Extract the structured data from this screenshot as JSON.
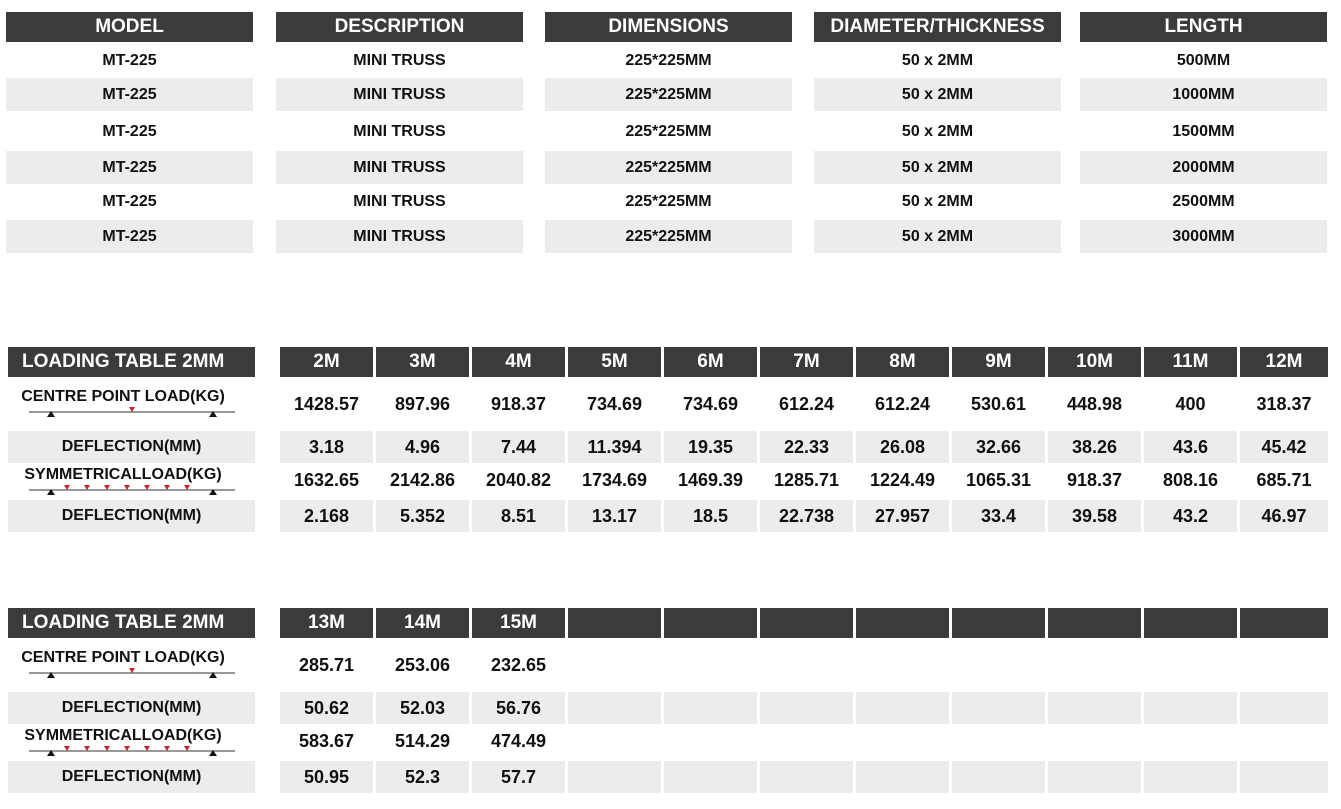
{
  "spec_table": {
    "headers": [
      "MODEL",
      "DESCRIPTION",
      "DIMENSIONS",
      "DIAMETER/THICKNESS",
      "LENGTH"
    ],
    "rows": [
      [
        "MT-225",
        "MINI TRUSS",
        "225*225MM",
        "50 x 2MM",
        "500MM"
      ],
      [
        "MT-225",
        "MINI TRUSS",
        "225*225MM",
        "50 x 2MM",
        "1000MM"
      ],
      [
        "MT-225",
        "MINI TRUSS",
        "225*225MM",
        "50 x 2MM",
        "1500MM"
      ],
      [
        "MT-225",
        "MINI TRUSS",
        "225*225MM",
        "50 x 2MM",
        "2000MM"
      ],
      [
        "MT-225",
        "MINI TRUSS",
        "225*225MM",
        "50 x 2MM",
        "2500MM"
      ],
      [
        "MT-225",
        "MINI TRUSS",
        "225*225MM",
        "50 x 2MM",
        "3000MM"
      ]
    ]
  },
  "loading_tables": [
    {
      "title": "LOADING TABLE 2MM",
      "columns": [
        "2M",
        "3M",
        "4M",
        "5M",
        "6M",
        "7M",
        "8M",
        "9M",
        "10M",
        "11M",
        "12M"
      ],
      "rows": [
        {
          "label": "CENTRE POINT LOAD(KG)",
          "values": [
            "1428.57",
            "897.96",
            "918.37",
            "734.69",
            "734.69",
            "612.24",
            "612.24",
            "530.61",
            "448.98",
            "400",
            "318.37"
          ]
        },
        {
          "label": "DEFLECTION(MM)",
          "values": [
            "3.18",
            "4.96",
            "7.44",
            "11.394",
            "19.35",
            "22.33",
            "26.08",
            "32.66",
            "38.26",
            "43.6",
            "45.42"
          ]
        },
        {
          "label": "SYMMETRICALLOAD(KG)",
          "values": [
            "1632.65",
            "2142.86",
            "2040.82",
            "1734.69",
            "1469.39",
            "1285.71",
            "1224.49",
            "1065.31",
            "918.37",
            "808.16",
            "685.71"
          ]
        },
        {
          "label": "DEFLECTION(MM)",
          "values": [
            "2.168",
            "5.352",
            "8.51",
            "13.17",
            "18.5",
            "22.738",
            "27.957",
            "33.4",
            "39.58",
            "43.2",
            "46.97"
          ]
        }
      ]
    },
    {
      "title": "LOADING TABLE 2MM",
      "columns": [
        "13M",
        "14M",
        "15M"
      ],
      "rows": [
        {
          "label": "CENTRE POINT LOAD(KG)",
          "values": [
            "285.71",
            "253.06",
            "232.65"
          ]
        },
        {
          "label": "DEFLECTION(MM)",
          "values": [
            "50.62",
            "52.03",
            "56.76"
          ]
        },
        {
          "label": "SYMMETRICALLOAD(KG)",
          "values": [
            "583.67",
            "514.29",
            "474.49"
          ]
        },
        {
          "label": "DEFLECTION(MM)",
          "values": [
            "50.95",
            "52.3",
            "57.7"
          ]
        }
      ]
    }
  ]
}
